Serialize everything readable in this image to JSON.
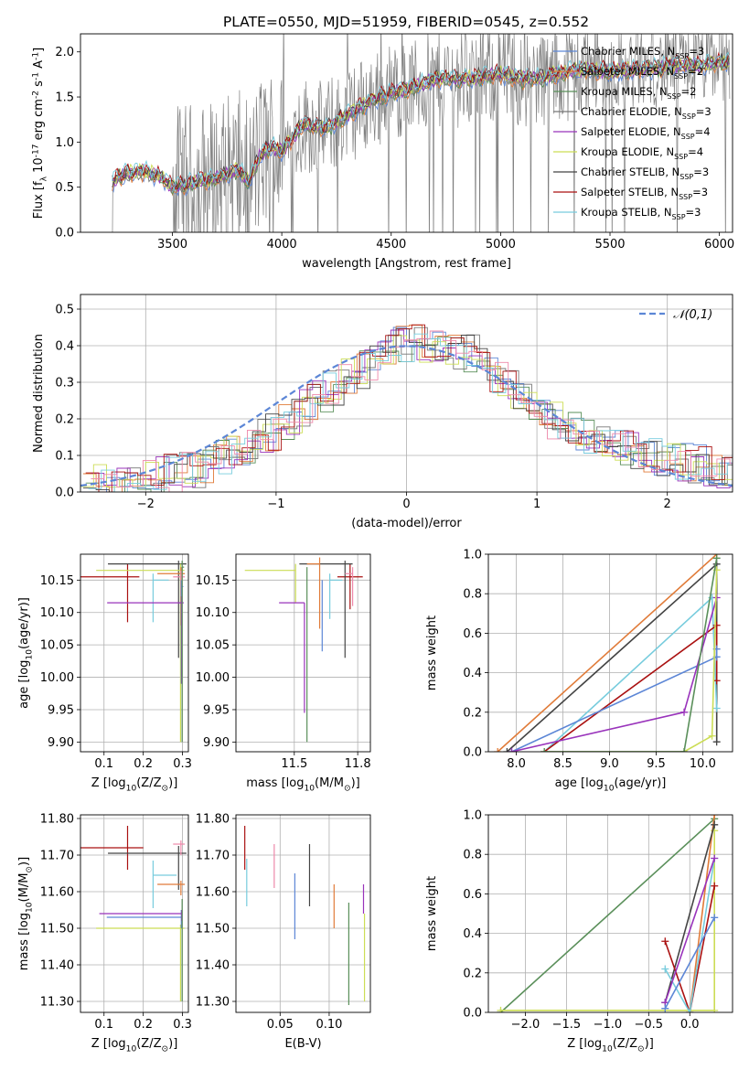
{
  "title": "PLATE=0550, MJD=51959, FIBERID=0545, z=0.552",
  "chart_data": [
    {
      "id": "spectrum",
      "type": "line",
      "xlabel": "wavelength [Angstrom, rest frame]",
      "ylabel": "Flux [f$_\\lambda$ 10$^{-17}$ erg cm$^{-2}$ s$^{-1}$ A$^{-1}$]",
      "xlim": [
        3080,
        6060
      ],
      "ylim": [
        0,
        2.2
      ],
      "xticks": [
        3500,
        4000,
        4500,
        5000,
        5500,
        6000
      ],
      "yticks": [
        0.0,
        0.5,
        1.0,
        1.5,
        2.0
      ],
      "grid": false,
      "legend_position": "top-right",
      "model_shape": {
        "x": [
          3220,
          3260,
          3350,
          3450,
          3500,
          3600,
          3700,
          3800,
          3850,
          3900,
          3950,
          4000,
          4100,
          4200,
          4300,
          4400,
          4500,
          4600,
          4700,
          4800,
          4900,
          5000,
          5100,
          5200,
          5300,
          5400,
          5500,
          5600,
          5700,
          5800,
          5900,
          6000
        ],
        "y": [
          0.55,
          0.62,
          0.68,
          0.62,
          0.5,
          0.55,
          0.6,
          0.7,
          0.55,
          0.85,
          0.95,
          0.9,
          1.2,
          1.15,
          1.3,
          1.45,
          1.55,
          1.6,
          1.7,
          1.7,
          1.72,
          1.75,
          1.7,
          1.72,
          1.78,
          1.8,
          1.78,
          1.8,
          1.82,
          1.85,
          1.85,
          1.88
        ]
      },
      "series": [
        {
          "name": "Chabrier MILES, N$_{SSP}$=3",
          "color": "#5c86d6"
        },
        {
          "name": "Salpeter MILES, N$_{SSP}$=2",
          "color": "#e07b39"
        },
        {
          "name": "Kroupa MILES, N$_{SSP}$=2",
          "color": "#5a8f5a"
        },
        {
          "name": "Chabrier ELODIE, N$_{SSP}$=3",
          "color": "#777777"
        },
        {
          "name": "Salpeter ELODIE, N$_{SSP}$=4",
          "color": "#9933bb"
        },
        {
          "name": "Kroupa ELODIE, N$_{SSP}$=4",
          "color": "#ccdd55"
        },
        {
          "name": "Chabrier STELIB, N$_{SSP}$=3",
          "color": "#444444"
        },
        {
          "name": "Salpeter STELIB, N$_{SSP}$=3",
          "color": "#aa1111"
        },
        {
          "name": "Kroupa STELIB, N$_{SSP}$=3",
          "color": "#77ccdd"
        }
      ]
    },
    {
      "id": "residuals",
      "type": "line",
      "xlabel": "(data-model)/error",
      "ylabel": "Normed distribution",
      "xlim": [
        -2.5,
        2.5
      ],
      "ylim": [
        0,
        0.54
      ],
      "xticks": [
        -2,
        -1,
        0,
        1,
        2
      ],
      "yticks": [
        0.0,
        0.1,
        0.2,
        0.3,
        0.4,
        0.5
      ],
      "grid": true,
      "legend_position": "top-right",
      "reference": {
        "name": "$\\mathcal{N}(0,1)$",
        "color": "#5c86d6",
        "mean": 0,
        "sigma": 1
      },
      "histogram_shape": {
        "x": [
          -2.5,
          -2.0,
          -1.5,
          -1.0,
          -0.5,
          0.0,
          0.5,
          1.0,
          1.5,
          2.0,
          2.5
        ],
        "y": [
          0.015,
          0.035,
          0.07,
          0.17,
          0.3,
          0.41,
          0.38,
          0.22,
          0.14,
          0.09,
          0.06
        ]
      },
      "series_colors": [
        "#5c86d6",
        "#e07b39",
        "#5a8f5a",
        "#777777",
        "#9933bb",
        "#ccdd55",
        "#444444",
        "#aa1111",
        "#77ccdd",
        "#ee88aa"
      ]
    },
    {
      "id": "age_vs_Z",
      "type": "scatter",
      "xlabel": "Z [log$_{10}$(Z/Z$_\\odot$)]",
      "ylabel": "age  [log$_{10}$(age/yr)]",
      "xlim": [
        0.04,
        0.315
      ],
      "ylim": [
        9.885,
        10.19
      ],
      "xticks": [
        0.1,
        0.2,
        0.3
      ],
      "yticks": [
        9.9,
        9.95,
        10.0,
        10.05,
        10.1,
        10.15
      ],
      "grid": true,
      "points": [
        {
          "x": 0.16,
          "y": 10.155,
          "xerr": [
            0.12,
            0.03
          ],
          "yerr": [
            0.07,
            0.02
          ],
          "color": "#aa1111"
        },
        {
          "x": 0.225,
          "y": 10.15,
          "xerr": [
            0.0,
            0.04
          ],
          "yerr": [
            0.065,
            0.01
          ],
          "color": "#77ccdd"
        },
        {
          "x": 0.29,
          "y": 10.175,
          "xerr": [
            0.18,
            0.02
          ],
          "yerr": [
            0.145,
            0.005
          ],
          "color": "#444444"
        },
        {
          "x": 0.295,
          "y": 10.165,
          "xerr": [
            0.215,
            0.01
          ],
          "yerr": [
            0.265,
            0.01
          ],
          "color": "#ccdd55"
        },
        {
          "x": 0.296,
          "y": 10.16,
          "xerr": [
            0.06,
            0.01
          ],
          "yerr": [
            0.08,
            0.01
          ],
          "color": "#e07b39"
        },
        {
          "x": 0.296,
          "y": 10.155,
          "xerr": [
            0.02,
            0.01
          ],
          "yerr": [
            0.03,
            0.01
          ],
          "color": "#ee88aa"
        },
        {
          "x": 0.297,
          "y": 10.14,
          "xerr": [
            0.0,
            0.005
          ],
          "yerr": [
            0.15,
            0.01
          ],
          "color": "#5c86d6"
        },
        {
          "x": 0.298,
          "y": 10.115,
          "xerr": [
            0.19,
            0.005
          ],
          "yerr": [
            0.125,
            0.01
          ],
          "color": "#9933bb"
        },
        {
          "x": 0.299,
          "y": 10.17,
          "xerr": [
            0.0,
            0.005
          ],
          "yerr": [
            0.27,
            0.01
          ],
          "color": "#5a8f5a"
        }
      ]
    },
    {
      "id": "age_vs_mass",
      "type": "scatter",
      "xlabel": "mass [log$_{10}$(M/M$_\\odot$)]",
      "ylabel": "",
      "xlim": [
        11.27,
        11.8
      ],
      "ylim": [
        9.885,
        10.19
      ],
      "xticks": [
        11.5,
        11.75
      ],
      "yticks": [
        9.9,
        9.95,
        10.0,
        10.05,
        10.1,
        10.15
      ],
      "grid": true,
      "points": [
        {
          "x": 11.72,
          "y": 10.155,
          "xerr": [
            0.05,
            0.05
          ],
          "yerr": [
            0.05,
            0.02
          ],
          "color": "#aa1111"
        },
        {
          "x": 11.64,
          "y": 10.15,
          "xerr": [
            0.0,
            0.05
          ],
          "yerr": [
            0.06,
            0.01
          ],
          "color": "#77ccdd"
        },
        {
          "x": 11.7,
          "y": 10.175,
          "xerr": [
            0.18,
            0.03
          ],
          "yerr": [
            0.145,
            0.005
          ],
          "color": "#444444"
        },
        {
          "x": 11.505,
          "y": 10.165,
          "xerr": [
            0.2,
            0.0
          ],
          "yerr": [
            0.05,
            0.01
          ],
          "color": "#ccdd55"
        },
        {
          "x": 11.6,
          "y": 10.175,
          "xerr": [
            0.05,
            0.0
          ],
          "yerr": [
            0.1,
            0.01
          ],
          "color": "#e07b39"
        },
        {
          "x": 11.73,
          "y": 10.16,
          "xerr": [
            0.03,
            0.0
          ],
          "yerr": [
            0.05,
            0.01
          ],
          "color": "#ee88aa"
        },
        {
          "x": 11.61,
          "y": 10.14,
          "xerr": [
            0.0,
            0.0
          ],
          "yerr": [
            0.1,
            0.01
          ],
          "color": "#5c86d6"
        },
        {
          "x": 11.54,
          "y": 10.115,
          "xerr": [
            0.1,
            0.0
          ],
          "yerr": [
            0.17,
            0.0
          ],
          "color": "#9933bb"
        },
        {
          "x": 11.55,
          "y": 10.17,
          "xerr": [
            0.0,
            0.0
          ],
          "yerr": [
            0.27,
            0.0
          ],
          "color": "#5a8f5a"
        }
      ]
    },
    {
      "id": "weight_vs_age",
      "type": "line",
      "xlabel": "age  [log$_{10}$(age/yr)]",
      "ylabel": "mass weight",
      "xlim": [
        7.7,
        10.32
      ],
      "ylim": [
        0,
        1.0
      ],
      "xticks": [
        8.0,
        8.5,
        9.0,
        9.5,
        10.0
      ],
      "yticks": [
        0.0,
        0.2,
        0.4,
        0.6,
        0.8,
        1.0
      ],
      "grid": true,
      "series": [
        {
          "color": "#e07b39",
          "points": [
            [
              7.8,
              0.0
            ],
            [
              10.15,
              1.0
            ]
          ]
        },
        {
          "color": "#444444",
          "points": [
            [
              7.9,
              0.0
            ],
            [
              10.15,
              0.95
            ],
            [
              10.15,
              0.05
            ]
          ]
        },
        {
          "color": "#77ccdd",
          "points": [
            [
              8.3,
              0.0
            ],
            [
              10.1,
              0.78
            ],
            [
              10.15,
              0.22
            ]
          ]
        },
        {
          "color": "#aa1111",
          "points": [
            [
              8.3,
              0.0
            ],
            [
              10.15,
              0.64
            ],
            [
              10.15,
              0.36
            ]
          ]
        },
        {
          "color": "#5c86d6",
          "points": [
            [
              7.95,
              0.0
            ],
            [
              10.15,
              0.48
            ],
            [
              10.15,
              0.52
            ]
          ]
        },
        {
          "color": "#9933bb",
          "points": [
            [
              7.95,
              0.0
            ],
            [
              9.8,
              0.2
            ],
            [
              10.15,
              0.78
            ]
          ]
        },
        {
          "color": "#ccdd55",
          "points": [
            [
              8.3,
              0.0
            ],
            [
              9.8,
              0.0
            ],
            [
              10.1,
              0.08
            ],
            [
              10.15,
              0.92
            ]
          ]
        },
        {
          "color": "#5a8f5a",
          "points": [
            [
              8.3,
              0.0
            ],
            [
              9.8,
              0.0
            ],
            [
              10.15,
              0.98
            ]
          ]
        }
      ]
    },
    {
      "id": "mass_vs_Z",
      "type": "scatter",
      "xlabel": "Z [log$_{10}$(Z/Z$_\\odot$)]",
      "ylabel": "mass [log$_{10}$(M/M$_\\odot$)]",
      "xlim": [
        0.04,
        0.315
      ],
      "ylim": [
        11.27,
        11.81
      ],
      "xticks": [
        0.1,
        0.2,
        0.3
      ],
      "yticks": [
        11.3,
        11.4,
        11.5,
        11.6,
        11.7,
        11.8
      ],
      "grid": true,
      "points": [
        {
          "x": 0.16,
          "y": 11.72,
          "xerr": [
            0.12,
            0.04
          ],
          "yerr": [
            0.06,
            0.06
          ],
          "color": "#aa1111"
        },
        {
          "x": 0.225,
          "y": 11.645,
          "xerr": [
            0.0,
            0.06
          ],
          "yerr": [
            0.09,
            0.04
          ],
          "color": "#77ccdd"
        },
        {
          "x": 0.29,
          "y": 11.705,
          "xerr": [
            0.18,
            0.02
          ],
          "yerr": [
            0.1,
            0.02
          ],
          "color": "#444444"
        },
        {
          "x": 0.295,
          "y": 11.5,
          "xerr": [
            0.215,
            0.01
          ],
          "yerr": [
            0.2,
            0.01
          ],
          "color": "#ccdd55"
        },
        {
          "x": 0.296,
          "y": 11.62,
          "xerr": [
            0.06,
            0.01
          ],
          "yerr": [
            0.03,
            0.01
          ],
          "color": "#e07b39"
        },
        {
          "x": 0.296,
          "y": 11.73,
          "xerr": [
            0.02,
            0.01
          ],
          "yerr": [
            0.03,
            0.01
          ],
          "color": "#ee88aa"
        },
        {
          "x": 0.297,
          "y": 11.53,
          "xerr": [
            0.19,
            0.0
          ],
          "yerr": [
            0.03,
            0.02
          ],
          "color": "#5c86d6"
        },
        {
          "x": 0.298,
          "y": 11.54,
          "xerr": [
            0.21,
            0.0
          ],
          "yerr": [
            0.02,
            0.01
          ],
          "color": "#9933bb"
        },
        {
          "x": 0.299,
          "y": 11.57,
          "xerr": [
            0.0,
            0.0
          ],
          "yerr": [
            0.27,
            0.01
          ],
          "color": "#5a8f5a"
        }
      ]
    },
    {
      "id": "mass_vs_ebv",
      "type": "scatter",
      "xlabel": "E(B-V)",
      "ylabel": "",
      "xlim": [
        0.005,
        0.142
      ],
      "ylim": [
        11.27,
        11.81
      ],
      "xticks": [
        0.05,
        0.1
      ],
      "yticks": [
        11.3,
        11.4,
        11.5,
        11.6,
        11.7,
        11.8
      ],
      "grid": true,
      "points": [
        {
          "x": 0.014,
          "y": 11.72,
          "yerr": [
            0.06,
            0.06
          ],
          "color": "#aa1111"
        },
        {
          "x": 0.016,
          "y": 11.65,
          "yerr": [
            0.09,
            0.04
          ],
          "color": "#77ccdd"
        },
        {
          "x": 0.044,
          "y": 11.67,
          "yerr": [
            0.06,
            0.06
          ],
          "color": "#ee88aa"
        },
        {
          "x": 0.065,
          "y": 11.56,
          "yerr": [
            0.09,
            0.09
          ],
          "color": "#5c86d6"
        },
        {
          "x": 0.08,
          "y": 11.645,
          "yerr": [
            0.085,
            0.085
          ],
          "color": "#444444"
        },
        {
          "x": 0.105,
          "y": 11.56,
          "yerr": [
            0.06,
            0.06
          ],
          "color": "#e07b39"
        },
        {
          "x": 0.12,
          "y": 11.43,
          "yerr": [
            0.14,
            0.14
          ],
          "color": "#5a8f5a"
        },
        {
          "x": 0.135,
          "y": 11.58,
          "yerr": [
            0.04,
            0.04
          ],
          "color": "#9933bb"
        },
        {
          "x": 0.136,
          "y": 11.42,
          "yerr": [
            0.12,
            0.12
          ],
          "color": "#ccdd55"
        }
      ]
    },
    {
      "id": "weight_vs_Z",
      "type": "line",
      "xlabel": "Z [log$_{10}$(Z/Z$_\\odot$)]",
      "ylabel": "mass weight",
      "xlim": [
        -2.45,
        0.52
      ],
      "ylim": [
        0,
        1.0
      ],
      "xticks": [
        -2.0,
        -1.5,
        -1.0,
        -0.5,
        0.0
      ],
      "yticks": [
        0.0,
        0.2,
        0.4,
        0.6,
        0.8,
        1.0
      ],
      "grid": true,
      "series": [
        {
          "color": "#5a8f5a",
          "points": [
            [
              -2.3,
              0.0
            ],
            [
              0.3,
              0.98
            ]
          ]
        },
        {
          "color": "#ccdd55",
          "points": [
            [
              -2.3,
              0.01
            ],
            [
              0.3,
              0.01
            ],
            [
              0.3,
              0.92
            ]
          ]
        },
        {
          "color": "#e07b39",
          "points": [
            [
              0.0,
              0.0
            ],
            [
              0.3,
              1.0
            ]
          ]
        },
        {
          "color": "#444444",
          "points": [
            [
              -0.3,
              0.05
            ],
            [
              0.3,
              0.95
            ]
          ]
        },
        {
          "color": "#aa1111",
          "points": [
            [
              -0.3,
              0.36
            ],
            [
              0.0,
              0.0
            ],
            [
              0.3,
              0.64
            ]
          ]
        },
        {
          "color": "#77ccdd",
          "points": [
            [
              -0.3,
              0.22
            ],
            [
              0.0,
              0.0
            ],
            [
              0.3,
              0.78
            ]
          ]
        },
        {
          "color": "#9933bb",
          "points": [
            [
              -0.3,
              0.05
            ],
            [
              0.3,
              0.78
            ]
          ]
        },
        {
          "color": "#5c86d6",
          "points": [
            [
              -0.3,
              0.02
            ],
            [
              0.3,
              0.48
            ]
          ]
        }
      ]
    }
  ]
}
